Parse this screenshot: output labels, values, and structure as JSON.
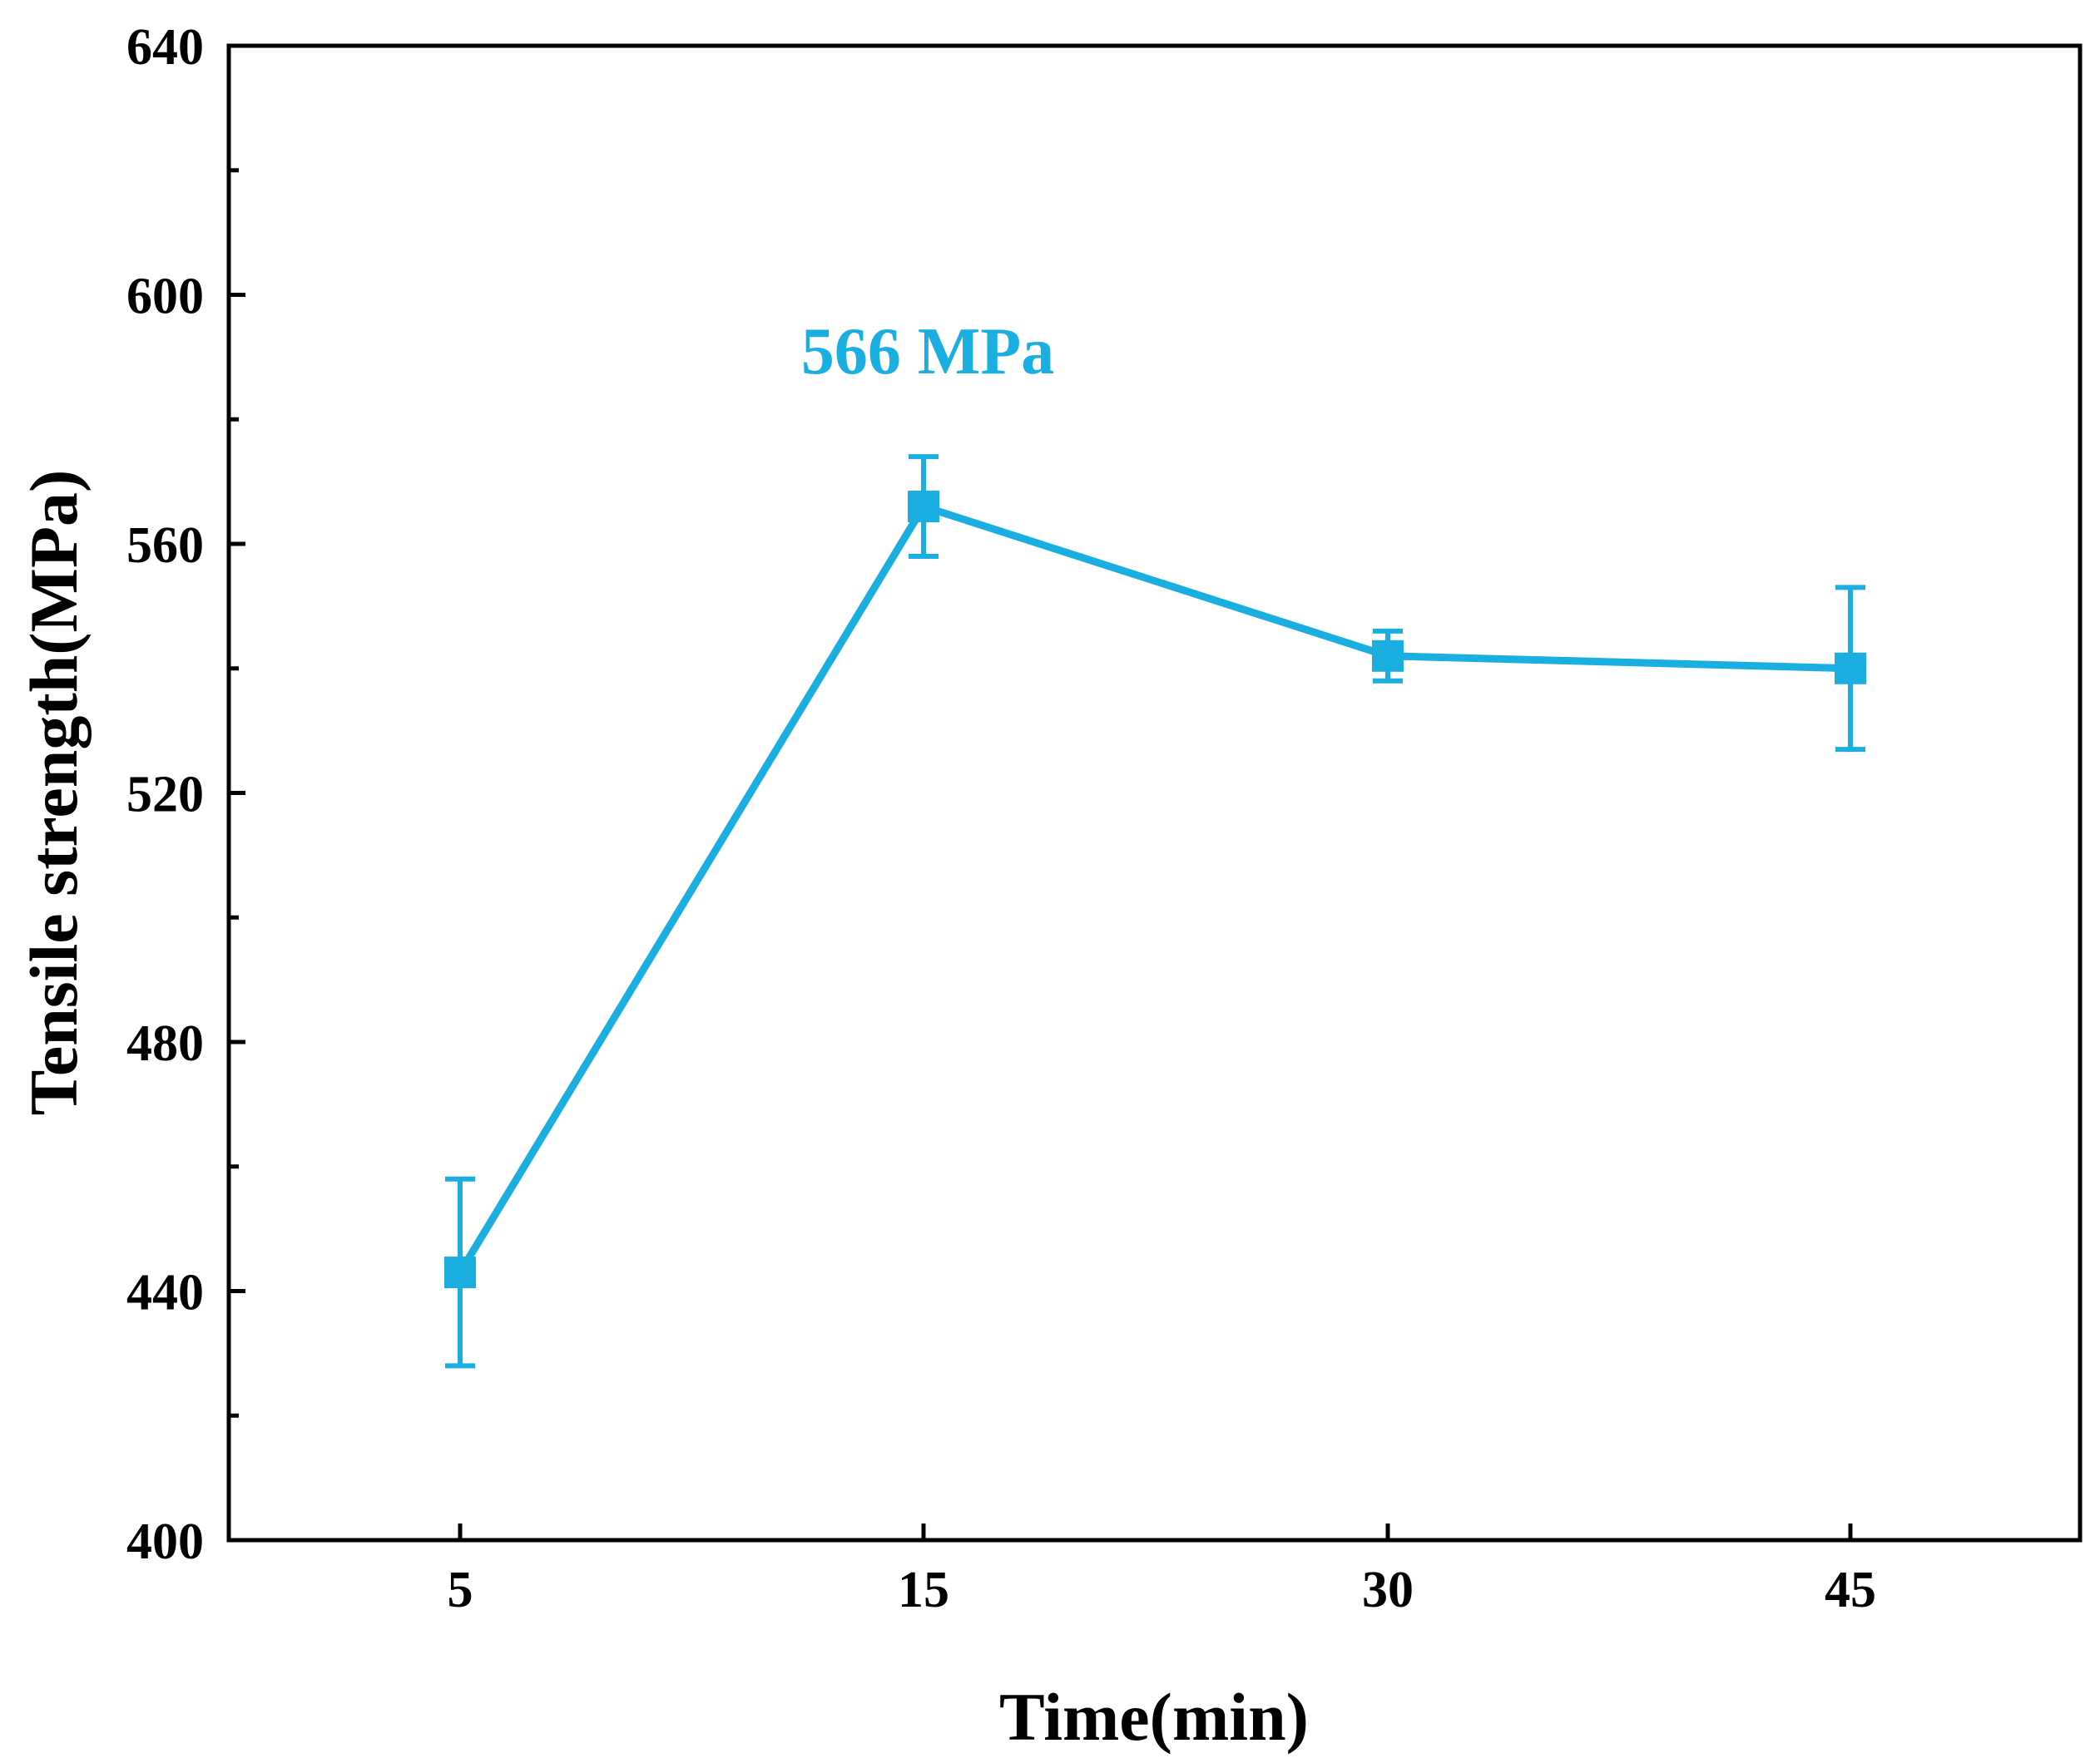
{
  "chart_data": {
    "type": "line",
    "title": "",
    "xlabel": "Time(min)",
    "ylabel": "Tensile strength(MPa)",
    "categories": [
      "5",
      "15",
      "30",
      "45"
    ],
    "ylim": [
      400,
      640
    ],
    "y_ticks": [
      "400",
      "440",
      "480",
      "520",
      "560",
      "600",
      "640"
    ],
    "grid": false,
    "series": [
      {
        "name": "Tensile strength",
        "color": "#1AAFE0",
        "values": [
          443,
          566,
          542,
          540
        ],
        "errors": [
          15,
          8,
          4,
          13
        ]
      }
    ],
    "annotation": {
      "text": "566 MPa",
      "point_index": 1
    }
  }
}
